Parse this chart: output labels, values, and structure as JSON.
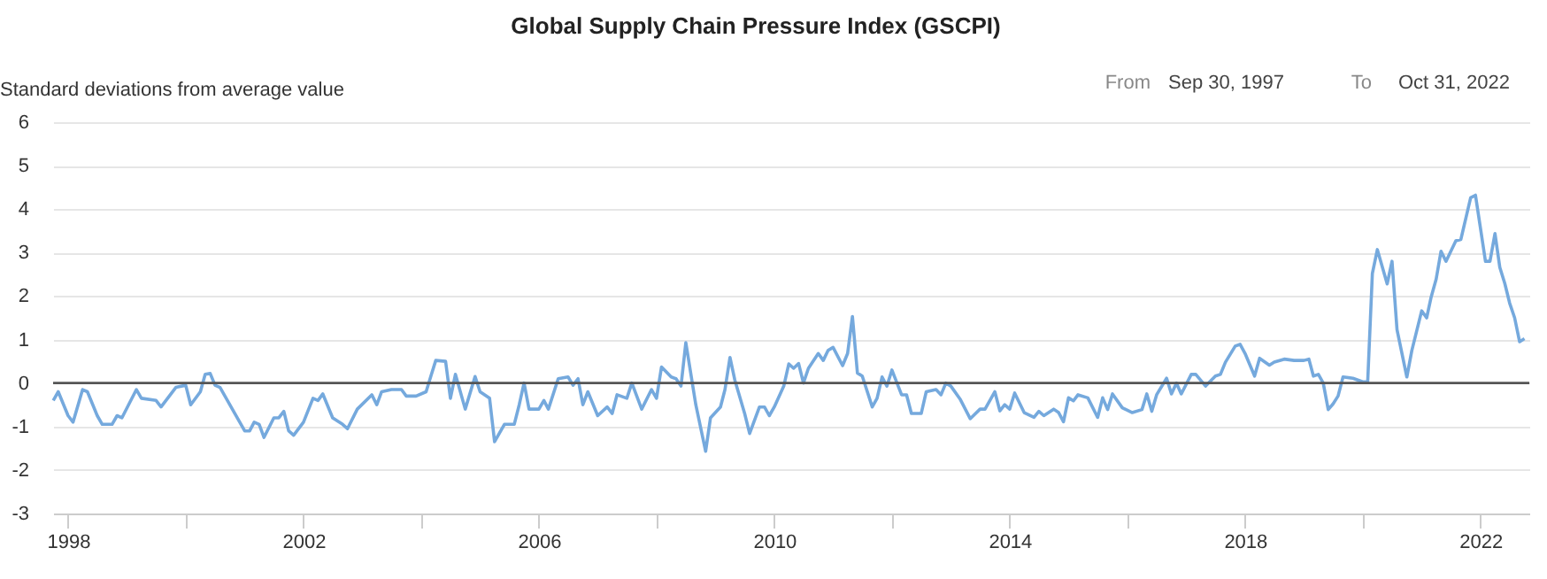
{
  "chart_data": {
    "type": "line",
    "title": "Global Supply Chain Pressure Index (GSCPI)",
    "ylabel": "Standard deviations from average value",
    "annotations": [
      "From",
      "Sep 30, 1997",
      "To",
      "Oct 31, 2022"
    ],
    "x": [
      "1997-10",
      "1997-11",
      "1998-01",
      "1998-02",
      "1998-04",
      "1998-05",
      "1998-07",
      "1998-08",
      "1998-10",
      "1998-11",
      "1998-12",
      "1999-03",
      "1999-04",
      "1999-07",
      "1999-08",
      "1999-11",
      "2000-01",
      "2000-02",
      "2000-04",
      "2000-05",
      "2000-06",
      "2000-07",
      "2000-08",
      "2000-11",
      "2001-01",
      "2001-02",
      "2001-03",
      "2001-04",
      "2001-05",
      "2001-07",
      "2001-08",
      "2001-09",
      "2001-10",
      "2001-11",
      "2002-01",
      "2002-03",
      "2002-04",
      "2002-05",
      "2002-07",
      "2002-09",
      "2002-10",
      "2002-12",
      "2003-03",
      "2003-04",
      "2003-05",
      "2003-07",
      "2003-09",
      "2003-10",
      "2003-12",
      "2004-02",
      "2004-03",
      "2004-04",
      "2004-06",
      "2004-07",
      "2004-08",
      "2004-10",
      "2004-12",
      "2005-01",
      "2005-03",
      "2005-04",
      "2005-06",
      "2005-08",
      "2005-09",
      "2005-10",
      "2005-11",
      "2006-01",
      "2006-02",
      "2006-03",
      "2006-05",
      "2006-07",
      "2006-08",
      "2006-09",
      "2006-10",
      "2006-11",
      "2007-01",
      "2007-03",
      "2007-04",
      "2007-05",
      "2007-07",
      "2007-08",
      "2007-10",
      "2007-12",
      "2008-01",
      "2008-02",
      "2008-04",
      "2008-05",
      "2008-06",
      "2008-07",
      "2008-09",
      "2008-11",
      "2008-12",
      "2009-02",
      "2009-03",
      "2009-04",
      "2009-05",
      "2009-07",
      "2009-08",
      "2009-10",
      "2009-11",
      "2009-12",
      "2010-01",
      "2010-03",
      "2010-04",
      "2010-05",
      "2010-06",
      "2010-07",
      "2010-08",
      "2010-10",
      "2010-11",
      "2010-12",
      "2011-01",
      "2011-03",
      "2011-04",
      "2011-05",
      "2011-06",
      "2011-07",
      "2011-09",
      "2011-10",
      "2011-11",
      "2011-12",
      "2012-01",
      "2012-03",
      "2012-04",
      "2012-05",
      "2012-07",
      "2012-08",
      "2012-10",
      "2012-11",
      "2012-12",
      "2013-01",
      "2013-03",
      "2013-05",
      "2013-07",
      "2013-08",
      "2013-10",
      "2013-11",
      "2013-12",
      "2014-01",
      "2014-02",
      "2014-04",
      "2014-06",
      "2014-07",
      "2014-08",
      "2014-10",
      "2014-11",
      "2014-12",
      "2015-01",
      "2015-02",
      "2015-03",
      "2015-05",
      "2015-07",
      "2015-08",
      "2015-09",
      "2015-10",
      "2015-12",
      "2016-02",
      "2016-04",
      "2016-05",
      "2016-06",
      "2016-07",
      "2016-09",
      "2016-10",
      "2016-11",
      "2016-12",
      "2017-02",
      "2017-03",
      "2017-05",
      "2017-07",
      "2017-08",
      "2017-09",
      "2017-11",
      "2017-12",
      "2018-01",
      "2018-03",
      "2018-04",
      "2018-06",
      "2018-07",
      "2018-09",
      "2018-11",
      "2019-01",
      "2019-02",
      "2019-03",
      "2019-04",
      "2019-05",
      "2019-06",
      "2019-07",
      "2019-08",
      "2019-09",
      "2019-11",
      "2020-01",
      "2020-02",
      "2020-03",
      "2020-04",
      "2020-06",
      "2020-07",
      "2020-08",
      "2020-10",
      "2020-11",
      "2021-01",
      "2021-02",
      "2021-03",
      "2021-04",
      "2021-05",
      "2021-06",
      "2021-08",
      "2021-09",
      "2021-11",
      "2021-12",
      "2022-02",
      "2022-03",
      "2022-04",
      "2022-05",
      "2022-06",
      "2022-07",
      "2022-08",
      "2022-09",
      "2022-10"
    ],
    "series": [
      {
        "color": "#75a9dd",
        "values": [
          -0.4,
          -0.2,
          -0.75,
          -0.9,
          -0.15,
          -0.2,
          -0.75,
          -0.95,
          -0.95,
          -0.75,
          -0.8,
          -0.15,
          -0.35,
          -0.4,
          -0.55,
          -0.1,
          -0.05,
          -0.5,
          -0.2,
          0.2,
          0.22,
          -0.05,
          -0.1,
          -0.7,
          -1.1,
          -1.1,
          -0.9,
          -0.95,
          -1.25,
          -0.8,
          -0.8,
          -0.65,
          -1.1,
          -1.2,
          -0.9,
          -0.35,
          -0.4,
          -0.25,
          -0.8,
          -0.95,
          -1.05,
          -0.6,
          -0.27,
          -0.5,
          -0.2,
          -0.15,
          -0.15,
          -0.3,
          -0.3,
          -0.2,
          0.15,
          0.52,
          0.5,
          -0.35,
          0.2,
          -0.6,
          0.15,
          -0.2,
          -0.35,
          -1.35,
          -0.95,
          -0.95,
          -0.5,
          0.0,
          -0.6,
          -0.6,
          -0.4,
          -0.6,
          0.1,
          0.14,
          -0.05,
          0.1,
          -0.5,
          -0.2,
          -0.75,
          -0.55,
          -0.7,
          -0.27,
          -0.35,
          0.0,
          -0.6,
          -0.15,
          -0.35,
          0.37,
          0.14,
          0.1,
          -0.07,
          0.93,
          -0.5,
          -1.57,
          -0.8,
          -0.55,
          -0.15,
          0.59,
          0.07,
          -0.7,
          -1.16,
          -0.55,
          -0.55,
          -0.75,
          -0.55,
          -0.07,
          0.44,
          0.34,
          0.45,
          0.0,
          0.34,
          0.68,
          0.52,
          0.75,
          0.82,
          0.4,
          0.68,
          1.53,
          0.23,
          0.16,
          -0.55,
          -0.35,
          0.14,
          -0.07,
          0.3,
          -0.27,
          -0.27,
          -0.7,
          -0.7,
          -0.2,
          -0.15,
          -0.27,
          0.0,
          -0.07,
          -0.38,
          -0.82,
          -0.6,
          -0.6,
          -0.2,
          -0.64,
          -0.5,
          -0.6,
          -0.23,
          -0.68,
          -0.79,
          -0.65,
          -0.75,
          -0.6,
          -0.68,
          -0.89,
          -0.34,
          -0.41,
          -0.27,
          -0.34,
          -0.79,
          -0.34,
          -0.61,
          -0.25,
          -0.57,
          -0.68,
          -0.61,
          -0.25,
          -0.65,
          -0.27,
          0.11,
          -0.25,
          0.0,
          -0.25,
          0.2,
          0.2,
          -0.07,
          0.16,
          0.2,
          0.48,
          0.85,
          0.89,
          0.68,
          0.16,
          0.57,
          0.41,
          0.48,
          0.55,
          0.52,
          0.52,
          0.55,
          0.16,
          0.2,
          0.0,
          -0.61,
          -0.48,
          -0.3,
          0.14,
          0.11,
          0.03,
          0.03,
          2.52,
          3.07,
          2.28,
          2.8,
          1.23,
          0.14,
          0.75,
          1.66,
          1.5,
          1.98,
          2.39,
          3.03,
          2.8,
          3.27,
          3.3,
          4.26,
          4.32,
          2.8,
          2.8,
          3.44,
          2.66,
          2.29,
          1.84,
          1.5,
          0.95,
          1.02
        ]
      }
    ],
    "xlim": [
      "1997-09-30",
      "2022-10-31"
    ],
    "xticks": [
      {
        "value": "1998",
        "label": "1998"
      },
      {
        "value": "2000",
        "label": null
      },
      {
        "value": "2002",
        "label": "2002"
      },
      {
        "value": "2004",
        "label": null
      },
      {
        "value": "2006",
        "label": "2006"
      },
      {
        "value": "2008",
        "label": null
      },
      {
        "value": "2010",
        "label": "2010"
      },
      {
        "value": "2012",
        "label": null
      },
      {
        "value": "2014",
        "label": "2014"
      },
      {
        "value": "2016",
        "label": null
      },
      {
        "value": "2018",
        "label": "2018"
      },
      {
        "value": "2020",
        "label": null
      },
      {
        "value": "2022",
        "label": "2022"
      }
    ],
    "ylim": [
      -3,
      6
    ],
    "yticks": [
      -3,
      -2,
      -1,
      0,
      1,
      2,
      3,
      4,
      5,
      6
    ],
    "grid": "y",
    "marker": "none",
    "line_style": "solid",
    "ref_lines": [
      {
        "axis": "y",
        "value": 0,
        "color": "#555555"
      }
    ]
  }
}
